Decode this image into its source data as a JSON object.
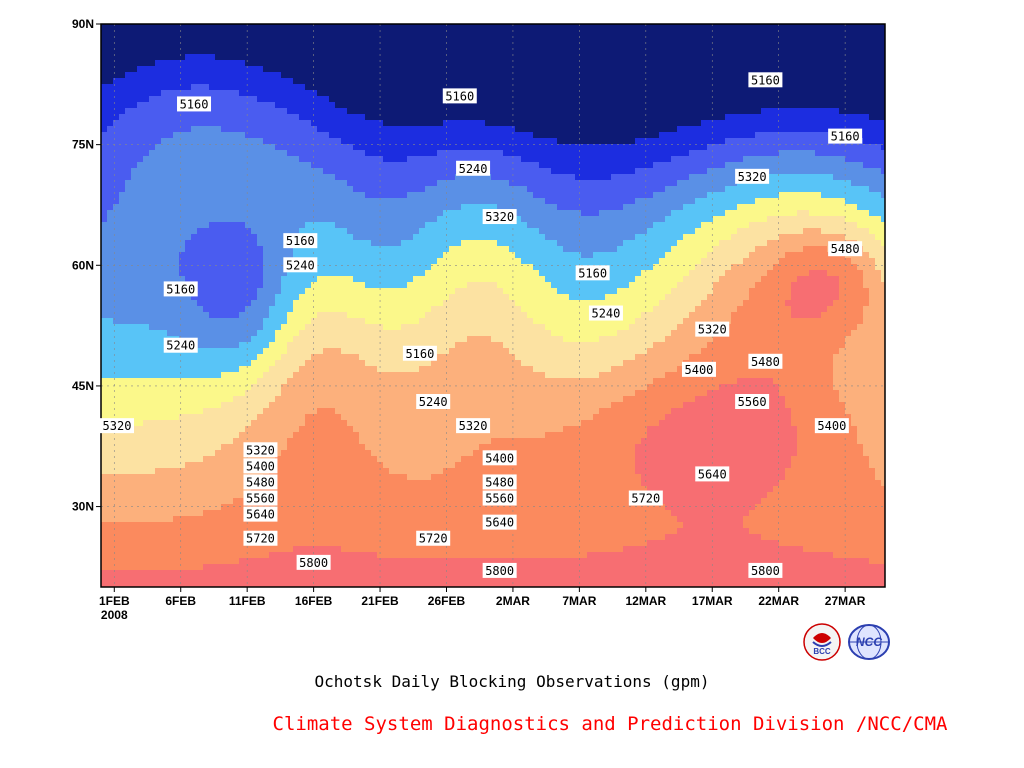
{
  "chart_data": {
    "type": "heatmap",
    "title": "Ochotsk Daily Blocking Observations (gpm)",
    "footer": "Climate System Diagnostics and Prediction Division /NCC/CMA",
    "x_ticks": [
      "1FEB",
      "6FEB",
      "11FEB",
      "16FEB",
      "21FEB",
      "26FEB",
      "2MAR",
      "7MAR",
      "12MAR",
      "17MAR",
      "22MAR",
      "27MAR"
    ],
    "x_year_label": "2008",
    "y_ticks": [
      "30N",
      "45N",
      "60N",
      "75N",
      "90N"
    ],
    "xlim": [
      "2008-01-31",
      "2008-03-30"
    ],
    "ylim": [
      20,
      90
    ],
    "grid": true,
    "levels": [
      5160,
      5240,
      5320,
      5400,
      5480,
      5560,
      5640,
      5720,
      5800
    ],
    "fill_colors": [
      "#0d1a75",
      "#1c2de0",
      "#4a5cf0",
      "#5a90e6",
      "#58c4f7",
      "#fbf88a",
      "#fce2a2",
      "#fcb07c",
      "#fb8a5e",
      "#f76e72"
    ],
    "contour_labels": [
      {
        "text": "5160",
        "x": "2008-02-07",
        "y": 80
      },
      {
        "text": "5160",
        "x": "2008-02-27",
        "y": 81
      },
      {
        "text": "5240",
        "x": "2008-02-28",
        "y": 72
      },
      {
        "text": "5160",
        "x": "2008-03-21",
        "y": 83
      },
      {
        "text": "5160",
        "x": "2008-03-27",
        "y": 76
      },
      {
        "text": "5320",
        "x": "2008-03-01",
        "y": 66
      },
      {
        "text": "5160",
        "x": "2008-02-15",
        "y": 63
      },
      {
        "text": "5240",
        "x": "2008-02-15",
        "y": 60
      },
      {
        "text": "5160",
        "x": "2008-02-06",
        "y": 57
      },
      {
        "text": "5320",
        "x": "2008-03-20",
        "y": 71
      },
      {
        "text": "5160",
        "x": "2008-03-08",
        "y": 59
      },
      {
        "text": "5480",
        "x": "2008-03-27",
        "y": 62
      },
      {
        "text": "5240",
        "x": "2008-03-09",
        "y": 54
      },
      {
        "text": "5240",
        "x": "2008-02-06",
        "y": 50
      },
      {
        "text": "5320",
        "x": "2008-03-17",
        "y": 52
      },
      {
        "text": "5160",
        "x": "2008-02-24",
        "y": 49
      },
      {
        "text": "5480",
        "x": "2008-03-21",
        "y": 48
      },
      {
        "text": "5400",
        "x": "2008-03-16",
        "y": 47
      },
      {
        "text": "5560",
        "x": "2008-03-20",
        "y": 43
      },
      {
        "text": "5240",
        "x": "2008-02-25",
        "y": 43
      },
      {
        "text": "5320",
        "x": "2008-01-31",
        "y": 40
      },
      {
        "text": "5320",
        "x": "2008-02-28",
        "y": 40
      },
      {
        "text": "5400",
        "x": "2008-03-26",
        "y": 40
      },
      {
        "text": "5320",
        "x": "2008-02-12",
        "y": 37
      },
      {
        "text": "5400",
        "x": "2008-03-01",
        "y": 36
      },
      {
        "text": "5400",
        "x": "2008-02-12",
        "y": 35
      },
      {
        "text": "5640",
        "x": "2008-03-17",
        "y": 34
      },
      {
        "text": "5480",
        "x": "2008-02-12",
        "y": 33
      },
      {
        "text": "5480",
        "x": "2008-03-01",
        "y": 33
      },
      {
        "text": "5560",
        "x": "2008-02-12",
        "y": 31
      },
      {
        "text": "5560",
        "x": "2008-03-01",
        "y": 31
      },
      {
        "text": "5720",
        "x": "2008-03-12",
        "y": 31
      },
      {
        "text": "5640",
        "x": "2008-02-12",
        "y": 29
      },
      {
        "text": "5640",
        "x": "2008-03-01",
        "y": 28
      },
      {
        "text": "5720",
        "x": "2008-02-12",
        "y": 26
      },
      {
        "text": "5720",
        "x": "2008-02-25",
        "y": 26
      },
      {
        "text": "5800",
        "x": "2008-02-16",
        "y": 23
      },
      {
        "text": "5800",
        "x": "2008-03-01",
        "y": 22
      },
      {
        "text": "5800",
        "x": "2008-03-21",
        "y": 22
      }
    ]
  },
  "logos": [
    {
      "name": "bcc-logo",
      "text": "BCC",
      "color": "#cc0000"
    },
    {
      "name": "ncc-logo",
      "text": "NCC",
      "color": "#2c3fb0"
    }
  ],
  "colors": {
    "footer": "#ff0000",
    "axis": "#000000",
    "grid": "#888888"
  }
}
